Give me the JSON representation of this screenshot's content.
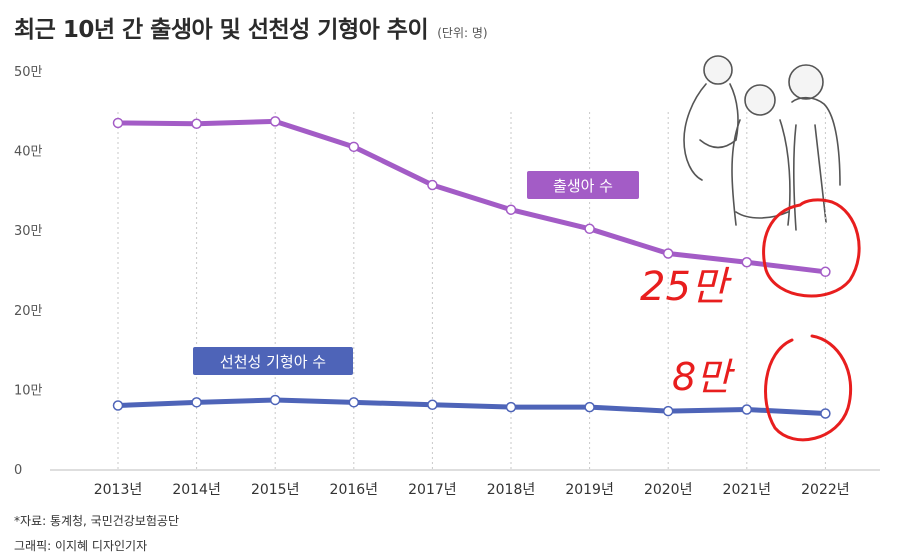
{
  "title": "최근 10년 간 출생아 및 선천성 기형아 추이",
  "unit": "(단위: 명)",
  "source": "*자료: 통계청, 국민건강보험공단",
  "credit": "그래픽: 이지혜 디자인기자",
  "annotations": {
    "births_handwritten": "25만",
    "defects_handwritten": "8만"
  },
  "colors": {
    "births": "#a35cc6",
    "defects": "#4e64b8",
    "grid": "#c9c9c9",
    "handwriting": "#e81e1e"
  },
  "chart_data": {
    "type": "line",
    "title": "최근 10년 간 출생아 및 선천성 기형아 추이",
    "ylabel": "",
    "xlabel": "",
    "x": [
      "2013년",
      "2014년",
      "2015년",
      "2016년",
      "2017년",
      "2018년",
      "2019년",
      "2020년",
      "2021년",
      "2022년"
    ],
    "y_ticks": [
      "0",
      "10만",
      "20만",
      "30만",
      "40만",
      "50만"
    ],
    "ylim": [
      0,
      500000
    ],
    "grid": "vertical dashed",
    "series": [
      {
        "name": "출생아 수",
        "values": [
          436000,
          435000,
          438000,
          406000,
          358000,
          327000,
          303000,
          272000,
          261000,
          249000
        ]
      },
      {
        "name": "선천성 기형아 수",
        "values": [
          81000,
          85000,
          88000,
          85000,
          82000,
          79000,
          79000,
          74000,
          76000,
          71000
        ]
      }
    ]
  }
}
